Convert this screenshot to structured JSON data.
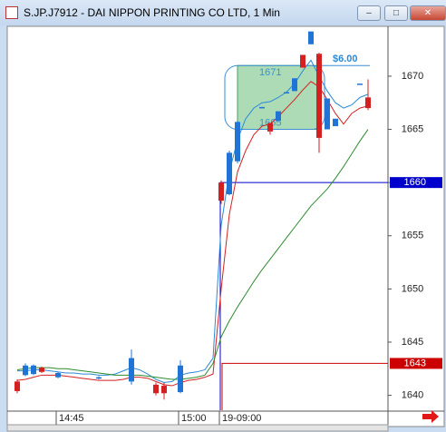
{
  "window": {
    "title": "S.JP.J7912 - DAI NIPPON PRINTING CO LTD, 1 Min"
  },
  "chart_data": {
    "type": "candlestick",
    "categories": [
      null,
      null,
      null,
      null,
      null,
      "14:45",
      null,
      null,
      null,
      null,
      null,
      null,
      null,
      null,
      null,
      null,
      null,
      null,
      null,
      null,
      "15:00",
      null,
      null,
      null,
      null,
      "19-09:00",
      null,
      null,
      null,
      null,
      null,
      null,
      null,
      null,
      null,
      null,
      null,
      null,
      null,
      null,
      null,
      null,
      null,
      null
    ],
    "open": [
      1641.3,
      1641.9,
      1642,
      1642.6,
      null,
      1641.7,
      null,
      null,
      null,
      null,
      1641.6,
      null,
      null,
      null,
      1641.3,
      null,
      null,
      1641,
      1640.9,
      null,
      1640.3,
      null,
      null,
      null,
      null,
      1660,
      1658.9,
      1662,
      null,
      null,
      1667,
      1665.6,
      1665.8,
      1668.5,
      1668.6,
      1672,
      1673,
      1672.1,
      1665,
      1665.3,
      null,
      null,
      1669.3,
      1668
    ],
    "high": [
      1641.5,
      1643,
      1642.9,
      1642.7,
      null,
      1642.2,
      null,
      null,
      null,
      null,
      1641.8,
      null,
      null,
      null,
      1644.3,
      null,
      null,
      1641.2,
      1641.2,
      null,
      1643.3,
      null,
      null,
      null,
      null,
      1660.2,
      1663,
      1665.8,
      null,
      null,
      1667.1,
      1665.6,
      1666.7,
      1668.5,
      1669.8,
      1672,
      1674.2,
      1672.2,
      1667.9,
      1666,
      null,
      null,
      1669.3,
      1669.7
    ],
    "low": [
      1640.2,
      1641.8,
      1641.9,
      1642.1,
      null,
      1641.6,
      null,
      null,
      null,
      null,
      1641.5,
      null,
      null,
      null,
      1641,
      null,
      null,
      1640,
      1639.6,
      null,
      1640.2,
      null,
      null,
      null,
      null,
      1658,
      1658.8,
      1661.8,
      null,
      null,
      1667,
      1664.5,
      1665.8,
      1668.5,
      1668.6,
      1670.8,
      1673,
      1662.8,
      1665,
      1665.3,
      null,
      null,
      1669.3,
      1666.8
    ],
    "close": [
      1640.4,
      1642.8,
      1642.8,
      1642.2,
      null,
      1642.1,
      null,
      null,
      null,
      null,
      1641.7,
      null,
      null,
      null,
      1643.5,
      null,
      null,
      1640.2,
      1640.2,
      null,
      1642.8,
      null,
      null,
      null,
      null,
      1658.3,
      1662.8,
      1665.7,
      null,
      null,
      1667.1,
      1664.8,
      1666.7,
      1668.5,
      1669.8,
      1670.8,
      1674.2,
      1664.2,
      1667.9,
      1666,
      null,
      null,
      1669.3,
      1667
    ],
    "up_color": "#1f74d6",
    "down_color": "#d42020",
    "series": [
      {
        "color": "#2a8ad8",
        "values": [
          1642.3,
          1642.3,
          1642.4,
          1642.4,
          1642.3,
          1642.2,
          1642.1,
          1642.1,
          1642,
          1642,
          1641.9,
          1641.9,
          1642,
          1642.3,
          1642.6,
          1642.4,
          1642,
          1641.5,
          1641.2,
          1641.3,
          1641.9,
          1642.1,
          1642.2,
          1642.4,
          1643.5,
          1656,
          1661,
          1664,
          1666,
          1667,
          1667.5,
          1667.6,
          1668,
          1668.5,
          1669.3,
          1670.5,
          1671.5,
          1670,
          1668.6,
          1667.5,
          1667,
          1667.3,
          1668,
          1668.3
        ]
      },
      {
        "color": "#d42020",
        "values": [
          1641.4,
          1641.5,
          1641.7,
          1641.9,
          1641.9,
          1641.9,
          1641.8,
          1641.7,
          1641.6,
          1641.5,
          1641.4,
          1641.4,
          1641.4,
          1641.5,
          1641.7,
          1641.7,
          1641.6,
          1641.3,
          1641,
          1640.9,
          1641.2,
          1641.4,
          1641.5,
          1641.7,
          1642,
          1650,
          1657,
          1661,
          1663,
          1664.5,
          1665.3,
          1665.5,
          1666.2,
          1667,
          1667.8,
          1668.7,
          1669.5,
          1669,
          1667.8,
          1666.5,
          1665.5,
          1666.5,
          1667,
          1667.2
        ]
      },
      {
        "color": "#2e8b2e",
        "values": [
          1642.4,
          1642.5,
          1642.6,
          1642.6,
          1642.6,
          1642.5,
          1642.5,
          1642.4,
          1642.3,
          1642.2,
          1642.1,
          1642,
          1641.9,
          1641.9,
          1641.9,
          1641.9,
          1641.8,
          1641.7,
          1641.6,
          1641.5,
          1641.5,
          1641.6,
          1641.7,
          1641.9,
          1643,
          1645.5,
          1647,
          1648.3,
          1649.5,
          1650.7,
          1651.8,
          1652.8,
          1653.8,
          1654.8,
          1655.8,
          1656.8,
          1657.8,
          1658.6,
          1659.4,
          1660.4,
          1661.5,
          1662.7,
          1663.9,
          1665
        ]
      }
    ],
    "ylim": [
      1638.6,
      1674.6
    ],
    "yticks": [
      1640,
      1645,
      1650,
      1655,
      1660,
      1665,
      1670
    ],
    "price_lines": [
      {
        "value": 1660,
        "color": "#0000cc"
      },
      {
        "value": 1643,
        "color": "#cc0000"
      }
    ],
    "box": {
      "high": 1671,
      "low": 1665,
      "range": {
        "value": 6,
        "label": "$6.00"
      }
    }
  }
}
